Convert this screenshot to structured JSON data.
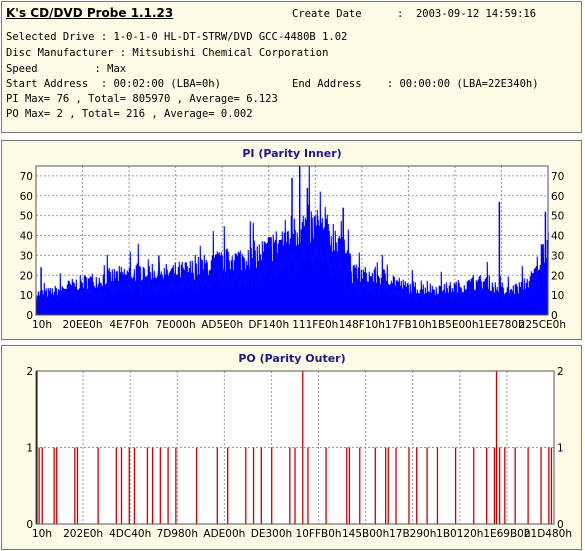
{
  "header": {
    "app_title": "K's CD/DVD Probe 1.1.23",
    "create_date_label": "Create Date",
    "create_date_value": ":  2003-09-12 14:59:16",
    "line1": "Selected Drive : 1-0-1-0 HL-DT-STRW/DVD GCC-4480B 1.02",
    "line2": "Disc Manufacturer : Mitsubishi Chemical Corporation",
    "line3": "Speed         : Max",
    "line4a": "Start Address  : 00:02:00 (LBA=0h)",
    "line4b": "End Address    : 00:00:00 (LBA=22E340h)",
    "line5": "PI Max= 76 , Total= 805970 , Average= 6.123",
    "line6": "PO Max= 2 , Total= 216 , Average= 0.002"
  },
  "chart_data": [
    {
      "type": "area",
      "title": "PI (Parity Inner)",
      "ylim": [
        0,
        75
      ],
      "y_ticks": [
        0,
        10,
        20,
        30,
        40,
        50,
        60,
        70
      ],
      "x_tick_labels": [
        "10h",
        "20EE0h",
        "4E7F0h",
        "7E000h",
        "AD5E0h",
        "DF140h",
        "111FE0h",
        "148F10h",
        "17FB10h",
        "1B5E00h",
        "1EE780h",
        "225CE0h"
      ],
      "grid": true,
      "color": "#0000ff",
      "profile": [
        {
          "x": 0.0,
          "y": 11
        },
        {
          "x": 0.03,
          "y": 12
        },
        {
          "x": 0.06,
          "y": 15
        },
        {
          "x": 0.1,
          "y": 18
        },
        {
          "x": 0.14,
          "y": 20
        },
        {
          "x": 0.18,
          "y": 22
        },
        {
          "x": 0.22,
          "y": 24
        },
        {
          "x": 0.25,
          "y": 22
        },
        {
          "x": 0.3,
          "y": 24
        },
        {
          "x": 0.35,
          "y": 28
        },
        {
          "x": 0.4,
          "y": 30
        },
        {
          "x": 0.44,
          "y": 33
        },
        {
          "x": 0.47,
          "y": 38
        },
        {
          "x": 0.5,
          "y": 45
        },
        {
          "x": 0.53,
          "y": 48
        },
        {
          "x": 0.56,
          "y": 44
        },
        {
          "x": 0.59,
          "y": 42
        },
        {
          "x": 0.61,
          "y": 42
        },
        {
          "x": 0.615,
          "y": 22
        },
        {
          "x": 0.65,
          "y": 21
        },
        {
          "x": 0.69,
          "y": 20
        },
        {
          "x": 0.72,
          "y": 15
        },
        {
          "x": 0.76,
          "y": 14
        },
        {
          "x": 0.8,
          "y": 14
        },
        {
          "x": 0.84,
          "y": 16
        },
        {
          "x": 0.88,
          "y": 18
        },
        {
          "x": 0.91,
          "y": 12
        },
        {
          "x": 0.94,
          "y": 14
        },
        {
          "x": 0.97,
          "y": 20
        },
        {
          "x": 1.0,
          "y": 42
        }
      ],
      "spikes": [
        {
          "x": 0.01,
          "y": 24
        },
        {
          "x": 0.24,
          "y": 30
        },
        {
          "x": 0.5,
          "y": 69
        },
        {
          "x": 0.515,
          "y": 76
        },
        {
          "x": 0.53,
          "y": 64
        },
        {
          "x": 0.55,
          "y": 50
        },
        {
          "x": 0.6,
          "y": 54
        },
        {
          "x": 0.905,
          "y": 57
        },
        {
          "x": 0.995,
          "y": 52
        }
      ]
    },
    {
      "type": "bar",
      "title": "PO (Parity Outer)",
      "ylim": [
        0,
        2
      ],
      "y_ticks": [
        0,
        1,
        2
      ],
      "x_tick_labels": [
        "10h",
        "202E0h",
        "4DC40h",
        "7D980h",
        "ADE00h",
        "DE300h",
        "10FFB0h",
        "145B00h",
        "17B290h",
        "1B0120h",
        "1E69B0h",
        "21D480h"
      ],
      "grid": true,
      "color": "#cc0000",
      "errors": [
        {
          "x": 0.006,
          "v": 1
        },
        {
          "x": 0.012,
          "v": 1
        },
        {
          "x": 0.035,
          "v": 1
        },
        {
          "x": 0.04,
          "v": 1
        },
        {
          "x": 0.075,
          "v": 1
        },
        {
          "x": 0.08,
          "v": 1
        },
        {
          "x": 0.12,
          "v": 1
        },
        {
          "x": 0.155,
          "v": 1
        },
        {
          "x": 0.165,
          "v": 1
        },
        {
          "x": 0.18,
          "v": 1
        },
        {
          "x": 0.19,
          "v": 1
        },
        {
          "x": 0.215,
          "v": 1
        },
        {
          "x": 0.225,
          "v": 1
        },
        {
          "x": 0.24,
          "v": 1
        },
        {
          "x": 0.255,
          "v": 1
        },
        {
          "x": 0.27,
          "v": 1
        },
        {
          "x": 0.31,
          "v": 1
        },
        {
          "x": 0.35,
          "v": 1
        },
        {
          "x": 0.37,
          "v": 1
        },
        {
          "x": 0.405,
          "v": 1
        },
        {
          "x": 0.42,
          "v": 1
        },
        {
          "x": 0.435,
          "v": 1
        },
        {
          "x": 0.455,
          "v": 1
        },
        {
          "x": 0.49,
          "v": 1
        },
        {
          "x": 0.5,
          "v": 1
        },
        {
          "x": 0.515,
          "v": 2
        },
        {
          "x": 0.525,
          "v": 1
        },
        {
          "x": 0.56,
          "v": 1
        },
        {
          "x": 0.6,
          "v": 1
        },
        {
          "x": 0.605,
          "v": 1
        },
        {
          "x": 0.625,
          "v": 1
        },
        {
          "x": 0.655,
          "v": 1
        },
        {
          "x": 0.675,
          "v": 1
        },
        {
          "x": 0.68,
          "v": 1
        },
        {
          "x": 0.695,
          "v": 1
        },
        {
          "x": 0.72,
          "v": 1
        },
        {
          "x": 0.735,
          "v": 1
        },
        {
          "x": 0.755,
          "v": 1
        },
        {
          "x": 0.775,
          "v": 1
        },
        {
          "x": 0.81,
          "v": 1
        },
        {
          "x": 0.845,
          "v": 1
        },
        {
          "x": 0.87,
          "v": 1
        },
        {
          "x": 0.885,
          "v": 1
        },
        {
          "x": 0.889,
          "v": 2
        },
        {
          "x": 0.895,
          "v": 1
        },
        {
          "x": 0.905,
          "v": 1
        },
        {
          "x": 0.925,
          "v": 1
        },
        {
          "x": 0.95,
          "v": 1
        },
        {
          "x": 0.975,
          "v": 1
        },
        {
          "x": 0.99,
          "v": 1
        },
        {
          "x": 0.995,
          "v": 1
        }
      ]
    }
  ]
}
